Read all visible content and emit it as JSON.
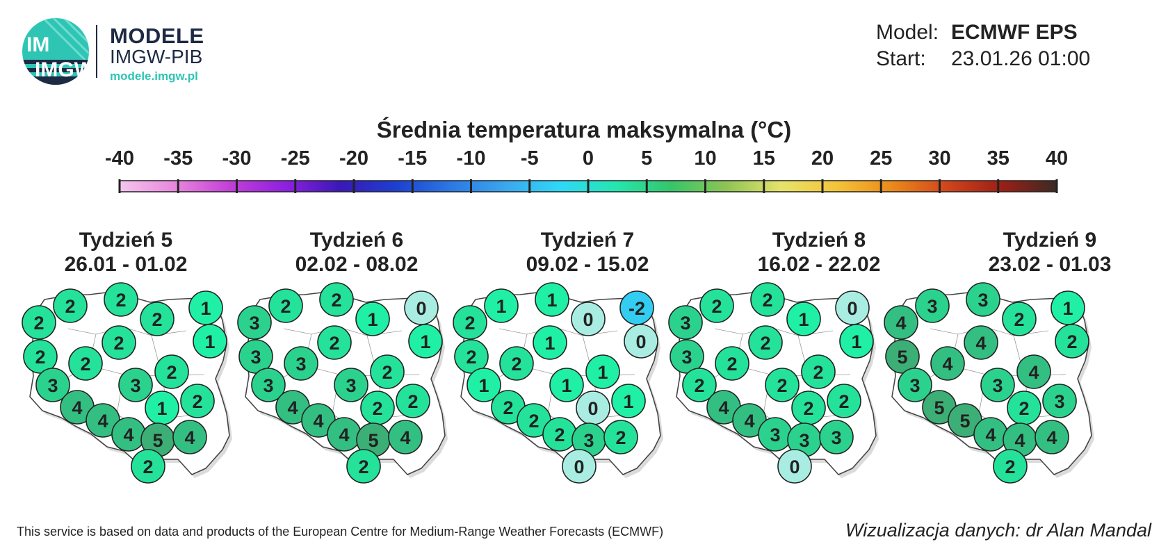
{
  "header": {
    "logo_text": "IMGW",
    "brand": "MODELE",
    "org": "IMGW-PIB",
    "url": "modele.imgw.pl"
  },
  "model_info": {
    "model_label": "Model:",
    "model_value": "ECMWF EPS",
    "start_label": "Start:",
    "start_value": "23.01.26 01:00"
  },
  "scale": {
    "title": "Średnia temperatura maksymalna (°C)",
    "ticks": [
      "-40",
      "-35",
      "-30",
      "-25",
      "-20",
      "-15",
      "-10",
      "-5",
      "0",
      "5",
      "10",
      "15",
      "20",
      "25",
      "30",
      "35",
      "40"
    ],
    "colors": [
      "#f4c6ee",
      "#e887dc",
      "#c33fd8",
      "#8f20e0",
      "#3a18b8",
      "#1d3fd0",
      "#2b78e4",
      "#3aa7ee",
      "#2fd8f8",
      "#25e6b0",
      "#35c66a",
      "#8ec455",
      "#e6e36a",
      "#f4c43a",
      "#ec8a1a",
      "#d2451b",
      "#9c1f15",
      "#3a2a24"
    ]
  },
  "weeks": [
    {
      "title": "Tydzień 5",
      "range": "26.01 - 01.02",
      "stations": [
        "2",
        "2",
        "2",
        "1",
        "2",
        "1",
        "2",
        "2",
        "2",
        "2",
        "3",
        "2",
        "3",
        "1",
        "4",
        "4",
        "4",
        "5",
        "4",
        "2"
      ]
    },
    {
      "title": "Tydzień 6",
      "range": "02.02 - 08.02",
      "stations": [
        "3",
        "2",
        "2",
        "0",
        "1",
        "1",
        "3",
        "3",
        "2",
        "2",
        "3",
        "2",
        "3",
        "2",
        "4",
        "4",
        "4",
        "5",
        "4",
        "2"
      ]
    },
    {
      "title": "Tydzień 7",
      "range": "09.02 - 15.02",
      "stations": [
        "2",
        "1",
        "1",
        "-2",
        "0",
        "0",
        "2",
        "2",
        "1",
        "1",
        "1",
        "1",
        "1",
        "0",
        "2",
        "2",
        "2",
        "3",
        "2",
        "0"
      ]
    },
    {
      "title": "Tydzień 8",
      "range": "16.02 - 22.02",
      "stations": [
        "3",
        "2",
        "2",
        "0",
        "1",
        "1",
        "3",
        "2",
        "2",
        "2",
        "2",
        "2",
        "2",
        "2",
        "4",
        "4",
        "3",
        "3",
        "3",
        "0"
      ]
    },
    {
      "title": "Tydzień 9",
      "range": "23.02 - 01.03",
      "stations": [
        "4",
        "3",
        "3",
        "1",
        "2",
        "2",
        "5",
        "4",
        "4",
        "4",
        "3",
        "3",
        "3",
        "2",
        "5",
        "5",
        "4",
        "4",
        "4",
        "2"
      ]
    }
  ],
  "footer": {
    "source": "This service is based on data and products of the European Centre for Medium-Range Weather Forecasts (ECMWF)",
    "credit": "Wizualizacja danych: dr Alan Mandal"
  }
}
